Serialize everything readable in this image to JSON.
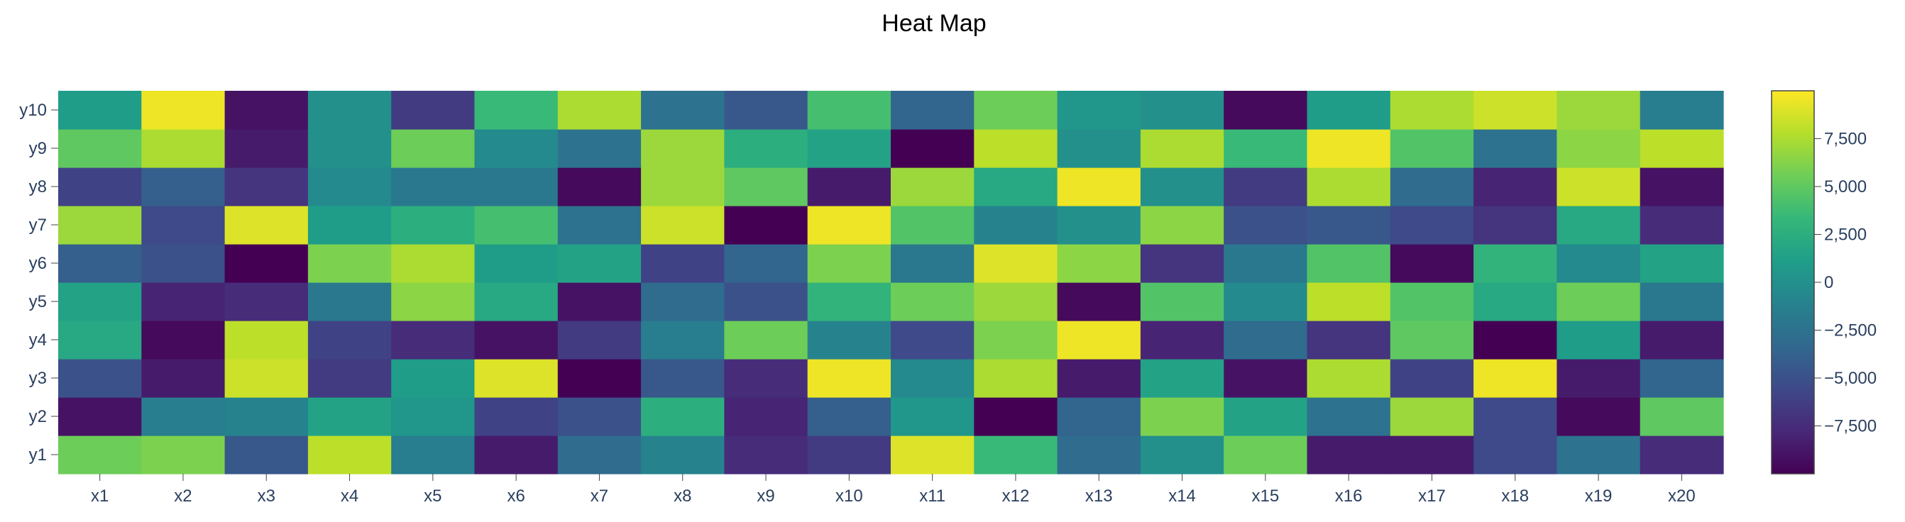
{
  "chart_data": {
    "type": "heatmap",
    "title": "Heat Map",
    "xlabel": "",
    "ylabel": "",
    "x": [
      "x1",
      "x2",
      "x3",
      "x4",
      "x5",
      "x6",
      "x7",
      "x8",
      "x9",
      "x10",
      "x11",
      "x12",
      "x13",
      "x14",
      "x15",
      "x16",
      "x17",
      "x18",
      "x19",
      "x20"
    ],
    "y": [
      "y1",
      "y2",
      "y3",
      "y4",
      "y5",
      "y6",
      "y7",
      "y8",
      "y9",
      "y10"
    ],
    "z": [
      [
        5500,
        6000,
        -4500,
        8000,
        -1500,
        -8500,
        -3000,
        -1000,
        -7500,
        -6500,
        9000,
        3500,
        -3000,
        0,
        5500,
        -8500,
        -8500,
        -5500,
        -2500,
        -7500
      ],
      [
        -9000,
        -1500,
        -1000,
        1500,
        500,
        -6000,
        -5000,
        2500,
        -8000,
        -4000,
        500,
        -10000,
        -3500,
        6000,
        1500,
        -2500,
        7000,
        -5500,
        -9500,
        5000
      ],
      [
        -5000,
        -8500,
        8500,
        -6500,
        1000,
        9000,
        -10000,
        -4500,
        -7500,
        9500,
        -500,
        7500,
        -8500,
        1500,
        -9000,
        7500,
        -6000,
        9500,
        -8500,
        -3500
      ],
      [
        2000,
        -9500,
        8000,
        -6000,
        -7500,
        -9000,
        -6500,
        -1500,
        5500,
        -1000,
        -5500,
        6000,
        9500,
        -8000,
        -3000,
        -7000,
        5000,
        -10000,
        1000,
        -8500
      ],
      [
        1500,
        -8000,
        -7500,
        -2000,
        6500,
        2000,
        -9000,
        -3000,
        -5000,
        3000,
        5500,
        7000,
        -9500,
        4500,
        -500,
        8000,
        4500,
        2000,
        5500,
        -2000
      ],
      [
        -4000,
        -5000,
        -10000,
        6000,
        7500,
        1000,
        1500,
        -6000,
        -3500,
        6000,
        -2000,
        9000,
        6500,
        -7000,
        -2000,
        4500,
        -9500,
        3000,
        -500,
        1500
      ],
      [
        7000,
        -5500,
        9000,
        1000,
        2500,
        4000,
        -2500,
        8500,
        -10000,
        9500,
        4500,
        -1000,
        0,
        6500,
        -5000,
        -4500,
        -5500,
        -7000,
        2000,
        -7500
      ],
      [
        -6000,
        -4000,
        -7000,
        -500,
        -2000,
        -2000,
        -9500,
        7000,
        5000,
        -8500,
        7000,
        2000,
        9500,
        0,
        -6500,
        7500,
        -3000,
        -8000,
        8500,
        -9000
      ],
      [
        5000,
        7500,
        -8500,
        0,
        5500,
        -500,
        -2500,
        7000,
        2500,
        1500,
        -10000,
        8000,
        0,
        7500,
        3500,
        9500,
        4500,
        -2500,
        6500,
        8000
      ],
      [
        1000,
        9500,
        -9000,
        0,
        -6500,
        3500,
        7500,
        -2500,
        -4500,
        4000,
        -3500,
        5500,
        500,
        0,
        -9500,
        1000,
        7500,
        8500,
        7000,
        -1500
      ]
    ],
    "zmin": -10000,
    "zmax": 10000,
    "colorscale": "viridis",
    "colorscale_stops": [
      "#440154",
      "#482878",
      "#3e4989",
      "#31688e",
      "#26828e",
      "#1f9e89",
      "#35b779",
      "#6ece58",
      "#b5de2b",
      "#fde725"
    ],
    "colorbar_ticks": [
      {
        "value": 7500,
        "label": "7,500"
      },
      {
        "value": 5000,
        "label": "5,000"
      },
      {
        "value": 2500,
        "label": "2,500"
      },
      {
        "value": 0,
        "label": "0"
      },
      {
        "value": -2500,
        "label": "−2,500"
      },
      {
        "value": -5000,
        "label": "−5,000"
      },
      {
        "value": -7500,
        "label": "−7,500"
      }
    ]
  }
}
